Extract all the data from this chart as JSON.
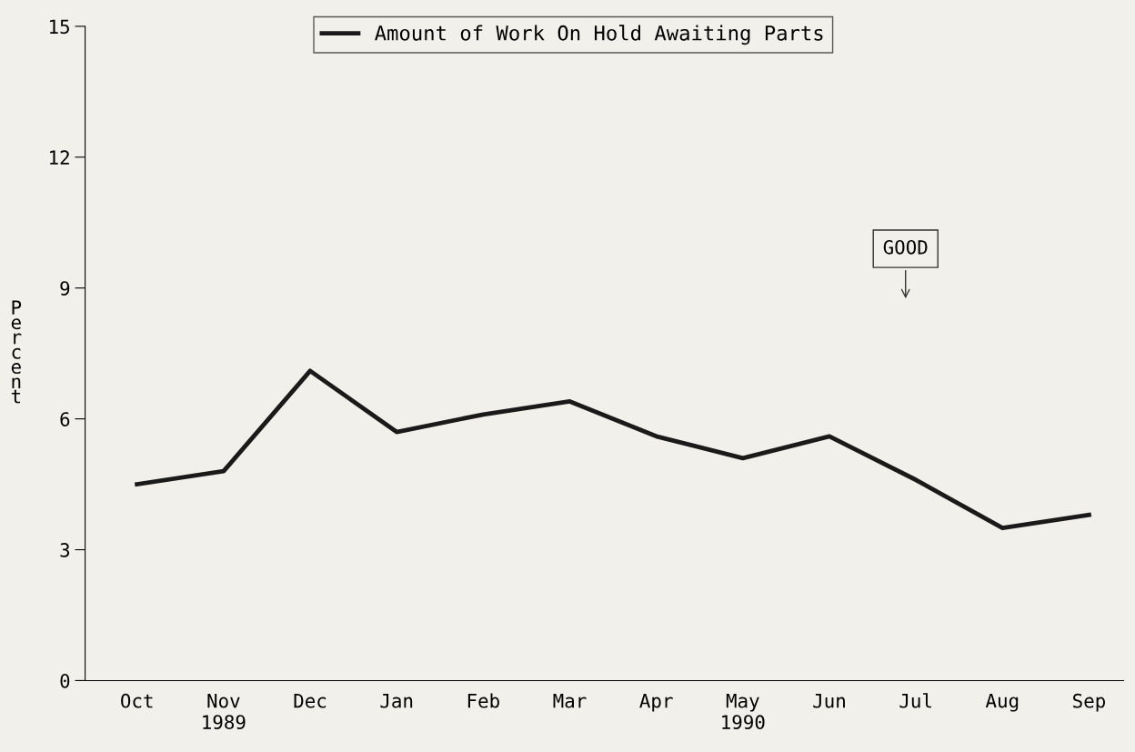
{
  "chart_data": {
    "type": "line",
    "ylabel": "Percent",
    "categories": [
      "Oct",
      "Nov\n1989",
      "Dec",
      "Jan",
      "Feb",
      "Mar",
      "Apr",
      "May\n1990",
      "Jun",
      "Jul",
      "Aug",
      "Sep"
    ],
    "series": [
      {
        "name": "Amount of Work On Hold Awaiting Parts",
        "color": "#1a1a1a",
        "values": [
          4.5,
          4.8,
          7.1,
          5.7,
          6.1,
          6.4,
          5.6,
          5.1,
          5.6,
          4.6,
          3.5,
          3.8
        ]
      }
    ],
    "ylim": [
      0,
      15
    ],
    "yticks": [
      0,
      3,
      6,
      9,
      12,
      15
    ],
    "grid": false,
    "legend": "top",
    "marker": "none",
    "line_style": "solid",
    "annotations": [
      "GOOD"
    ]
  }
}
